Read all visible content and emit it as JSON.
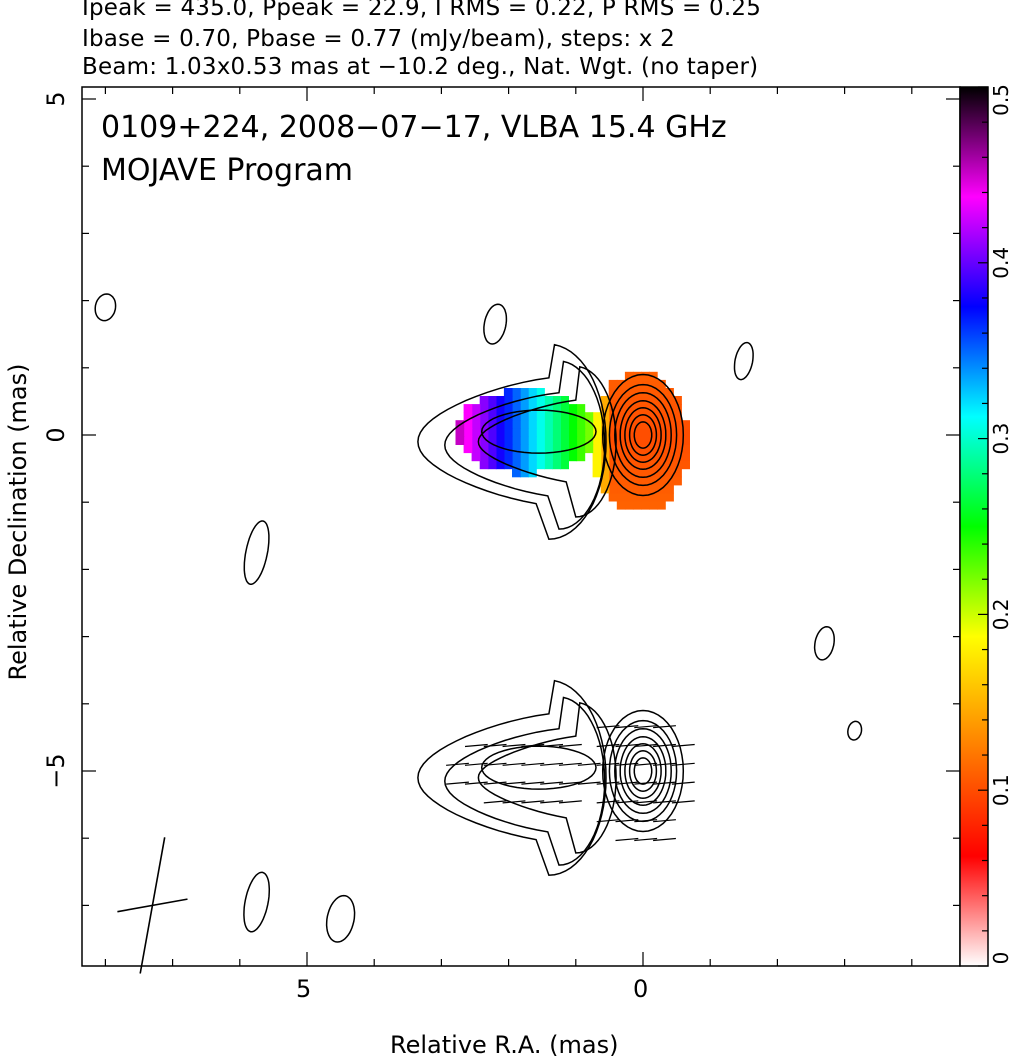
{
  "header": {
    "line1": "Ipeak = 435.0, Ppeak = 22.9, I RMS = 0.22, P RMS = 0.25",
    "line2": "Ibase = 0.70, Pbase = 0.77 (mJy/beam), steps: x 2",
    "line3": "Beam: 1.03x0.53 mas at −10.2 deg., Nat. Wgt. (no taper)"
  },
  "chart_data": {
    "type": "contour",
    "title": "0109+224, 2008−07−17, VLBA 15.4 GHz",
    "subtitle": "MOJAVE Program",
    "xlabel": "Relative R.A. (mas)",
    "ylabel": "Relative Declination (mas)",
    "x_axis": {
      "reversed": true,
      "major_ticks": [
        5,
        0
      ],
      "tick_labels": [
        "5",
        "0"
      ],
      "xlim": [
        8.5,
        -4.6
      ]
    },
    "y_axis": {
      "major_ticks": [
        5,
        0,
        -5
      ],
      "tick_labels": [
        "5",
        "0",
        "−5"
      ],
      "ylim": [
        -7.9,
        5.1
      ]
    },
    "colorbar": {
      "label_values": [
        0,
        0.1,
        0.2,
        0.3,
        0.4,
        0.5
      ],
      "tick_labels": [
        "0",
        "0.1",
        "0.2",
        "0.3",
        "0.4",
        "0.5"
      ],
      "colormap": [
        "#ffffff",
        "#ff0000",
        "#ff8000",
        "#ffff00",
        "#00ff00",
        "#00ffff",
        "#0000ff",
        "#ff00ff",
        "#000000"
      ]
    },
    "beam": {
      "major_mas": 1.03,
      "minor_mas": 0.53,
      "pa_deg": -10.2,
      "center": [
        7.3,
        -7.0
      ]
    },
    "core_position": [
      0,
      0
    ],
    "polarization_map": {
      "center": [
        0,
        -5.0
      ],
      "vector_angle_deg": -5
    }
  }
}
